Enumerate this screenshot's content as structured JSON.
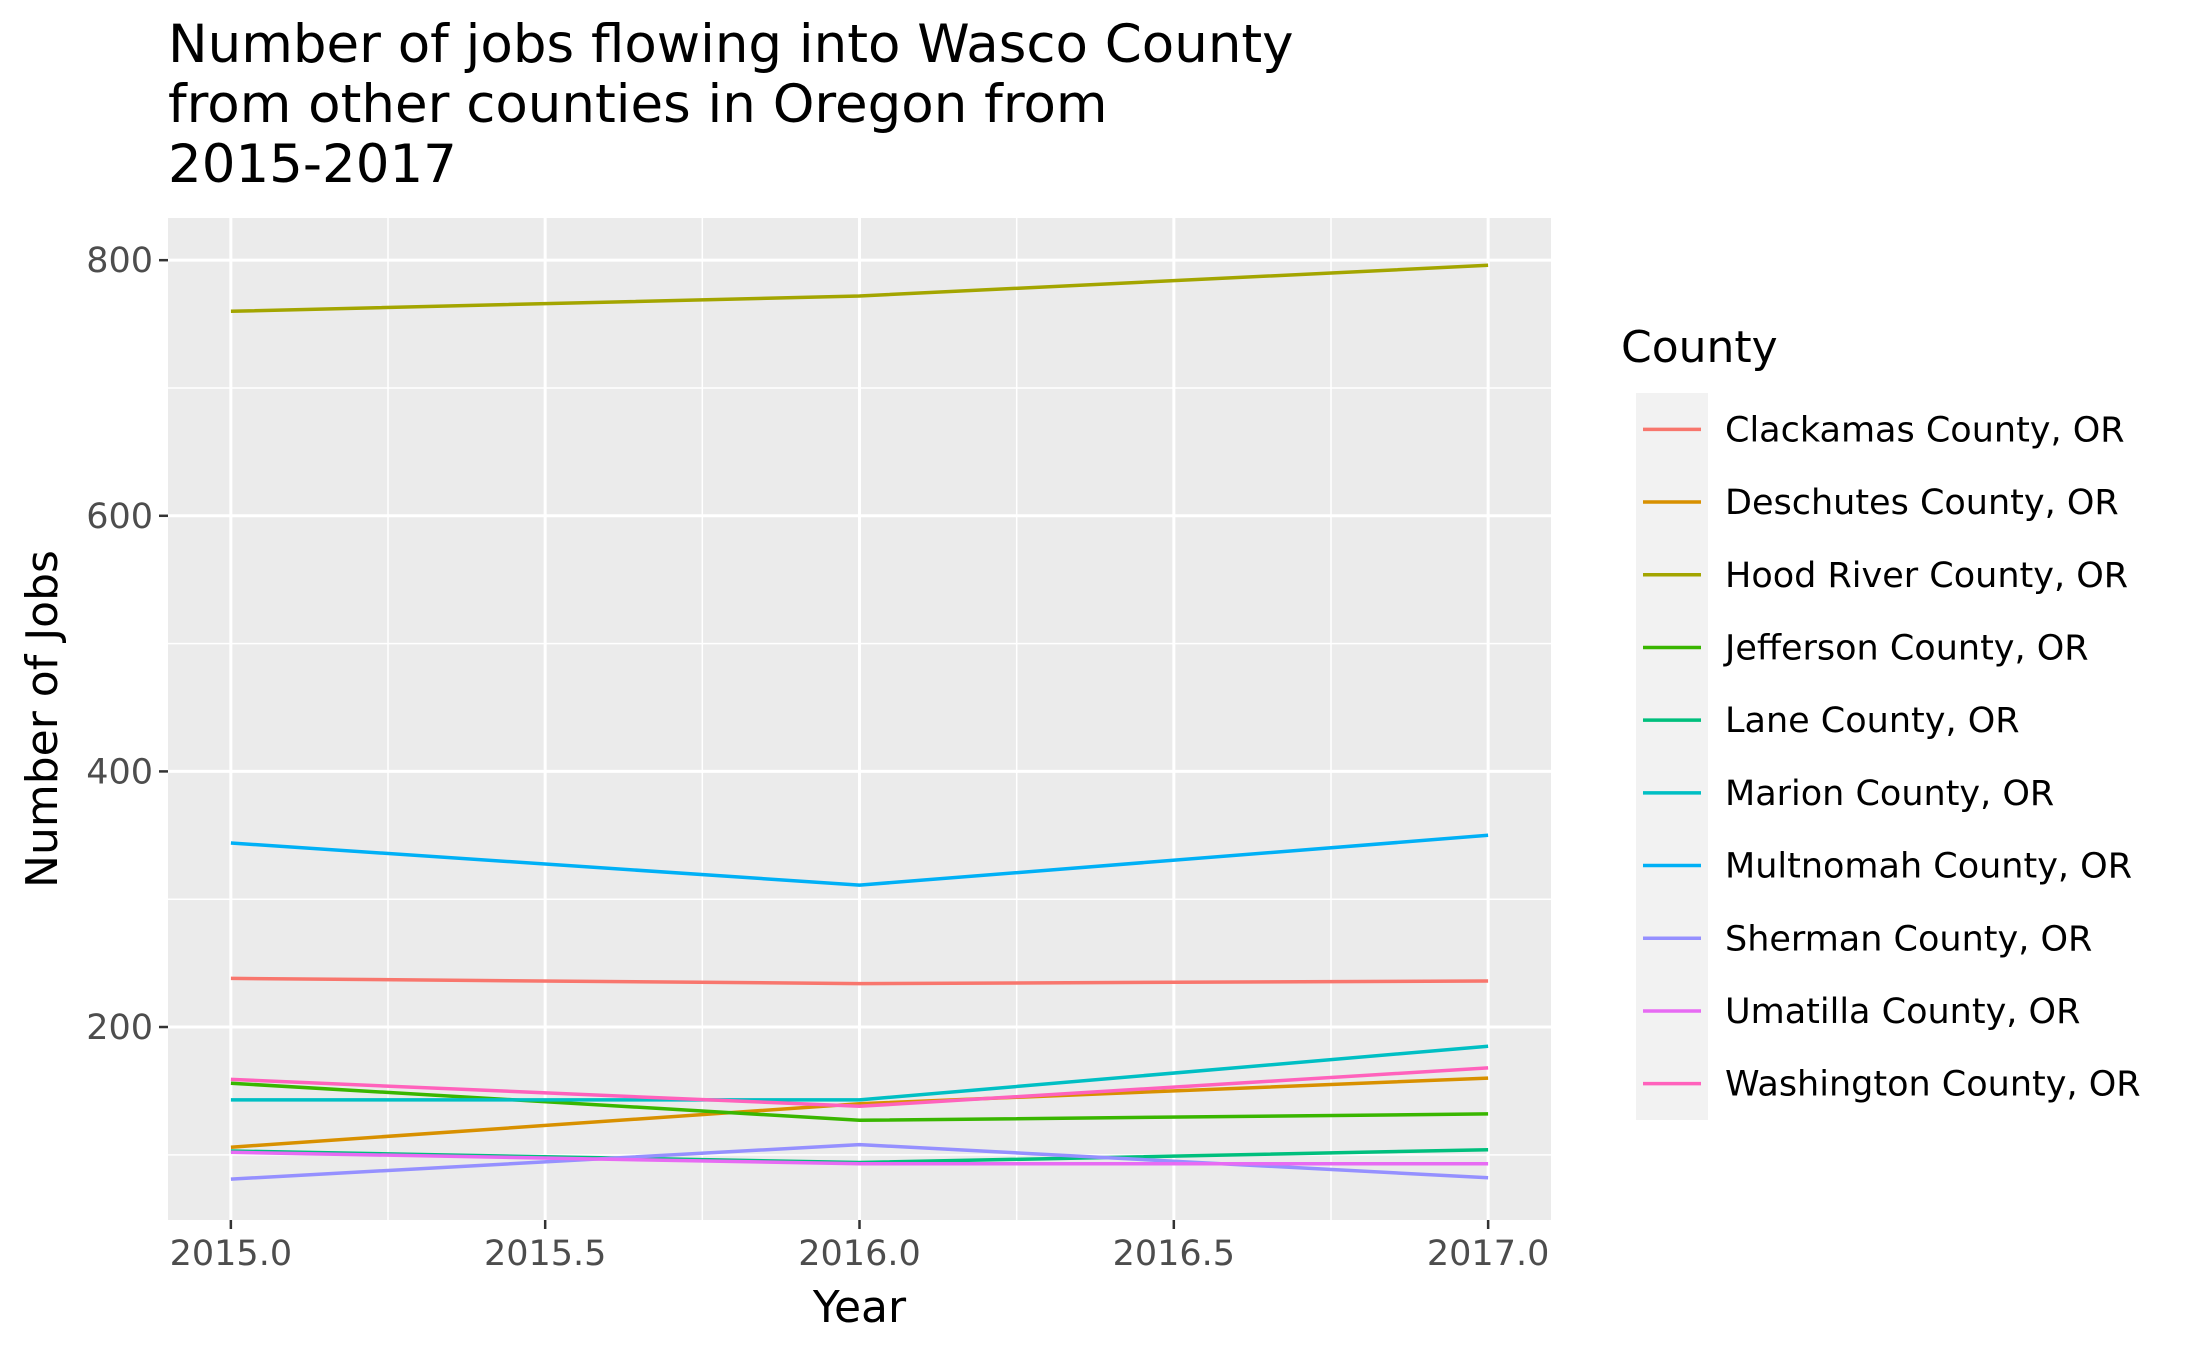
{
  "chart_data": {
    "type": "line",
    "title_lines": [
      "Number of jobs flowing into Wasco County",
      "from other counties in Oregon from",
      "2015-2017"
    ],
    "xlabel": "Year",
    "ylabel": "Number of Jobs",
    "x": [
      2015,
      2016,
      2017
    ],
    "xlim": [
      2014.9,
      2017.1
    ],
    "ylim": [
      49,
      833
    ],
    "x_ticks": [
      2015.0,
      2015.5,
      2016.0,
      2016.5,
      2017.0
    ],
    "x_tick_labels": [
      "2015.0",
      "2015.5",
      "2016.0",
      "2016.5",
      "2017.0"
    ],
    "y_ticks": [
      200,
      400,
      600,
      800
    ],
    "y_tick_labels": [
      "200",
      "400",
      "600",
      "800"
    ],
    "grid": true,
    "legend_position": "right",
    "legend_title": "County",
    "series": [
      {
        "name": "Clackamas County, OR",
        "color": "#F8766D",
        "values": [
          238,
          234,
          236
        ]
      },
      {
        "name": "Deschutes County, OR",
        "color": "#D89000",
        "values": [
          106,
          140,
          160
        ]
      },
      {
        "name": "Hood River County, OR",
        "color": "#A3A500",
        "values": [
          760,
          772,
          796
        ]
      },
      {
        "name": "Jefferson County, OR",
        "color": "#39B600",
        "values": [
          156,
          127,
          132
        ]
      },
      {
        "name": "Lane County, OR",
        "color": "#00BF7D",
        "values": [
          103,
          94,
          104
        ]
      },
      {
        "name": "Marion County, OR",
        "color": "#00BFC4",
        "values": [
          143,
          143,
          185
        ]
      },
      {
        "name": "Multnomah County, OR",
        "color": "#00B0F6",
        "values": [
          344,
          311,
          350
        ]
      },
      {
        "name": "Sherman County, OR",
        "color": "#9590FF",
        "values": [
          81,
          108,
          82
        ]
      },
      {
        "name": "Umatilla County, OR",
        "color": "#E76BF3",
        "values": [
          102,
          93,
          93
        ]
      },
      {
        "name": "Washington County, OR",
        "color": "#FF62BC",
        "values": [
          159,
          138,
          168
        ]
      }
    ]
  }
}
